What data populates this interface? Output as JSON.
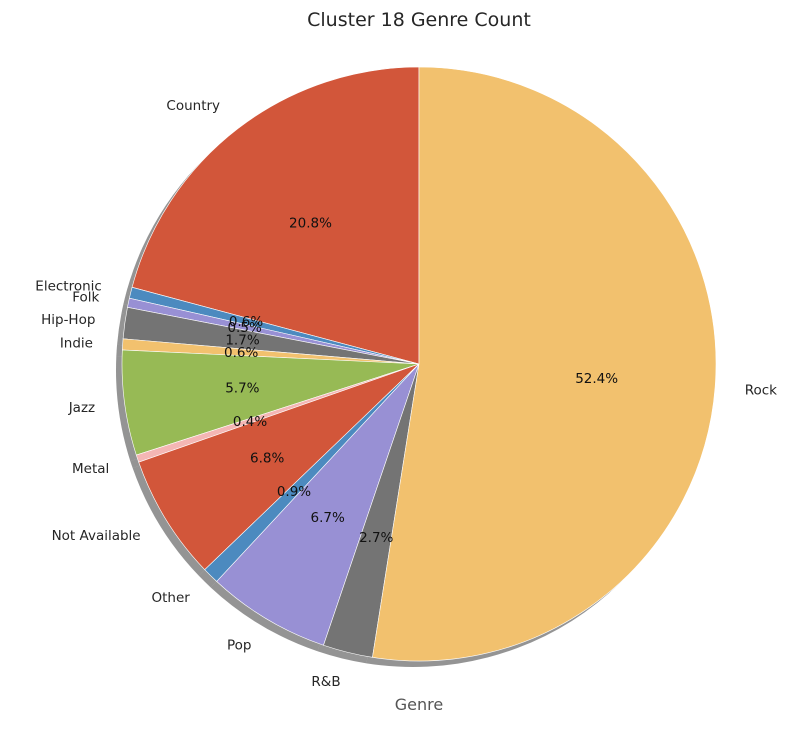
{
  "chart_data": {
    "type": "pie",
    "title": "Cluster 18 Genre Count",
    "xlabel": "Genre",
    "start_angle_deg": 90,
    "direction": "counterclockwise",
    "shadow": true,
    "slices": [
      {
        "label": "Country",
        "value": 20.8,
        "pct_label": "20.8%",
        "color": "#d2563a"
      },
      {
        "label": "Electronic",
        "value": 0.6,
        "pct_label": "0.6%",
        "color": "#4c8abf"
      },
      {
        "label": "Folk",
        "value": 0.5,
        "pct_label": "0.5%",
        "color": "#9890d4"
      },
      {
        "label": "Hip-Hop",
        "value": 1.7,
        "pct_label": "1.7%",
        "color": "#747474"
      },
      {
        "label": "Indie",
        "value": 0.6,
        "pct_label": "0.6%",
        "color": "#f2c16e"
      },
      {
        "label": "Jazz",
        "value": 5.7,
        "pct_label": "5.7%",
        "color": "#97ba55"
      },
      {
        "label": "Metal",
        "value": 0.4,
        "pct_label": "0.4%",
        "color": "#f4b6b4"
      },
      {
        "label": "Not Available",
        "value": 6.8,
        "pct_label": "6.8%",
        "color": "#d2563a"
      },
      {
        "label": "Other",
        "value": 0.9,
        "pct_label": "0.9%",
        "color": "#4c8abf"
      },
      {
        "label": "Pop",
        "value": 6.7,
        "pct_label": "6.7%",
        "color": "#9890d4"
      },
      {
        "label": "R&B",
        "value": 2.7,
        "pct_label": "2.7%",
        "color": "#747474"
      },
      {
        "label": "Rock",
        "value": 52.4,
        "pct_label": "52.4%",
        "color": "#f2c16e"
      }
    ]
  }
}
